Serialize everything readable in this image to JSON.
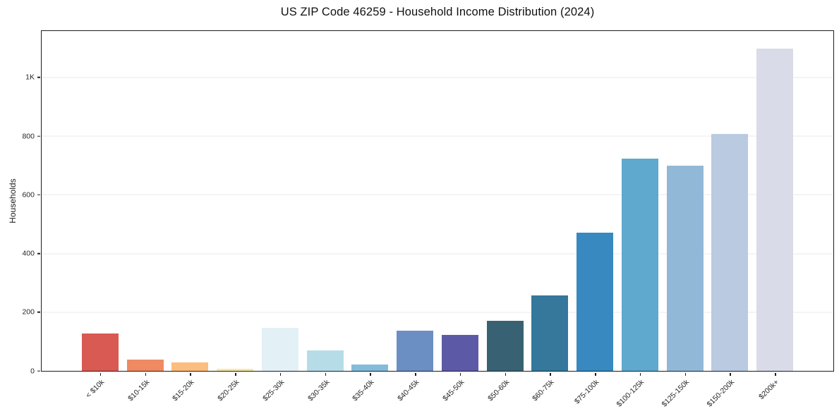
{
  "chart_data": {
    "type": "bar",
    "title": "US ZIP Code 46259 - Household Income Distribution (2024)",
    "xlabel": "",
    "ylabel": "Households",
    "ylim": [
      0,
      1158
    ],
    "grid": "horizontal",
    "legend": "none",
    "background": "#ffffff",
    "frame_color": "#1c1c1c",
    "gridline_color": "#e8e8e8",
    "yticks": [
      {
        "value": 0,
        "label": "0"
      },
      {
        "value": 200,
        "label": "200"
      },
      {
        "value": 400,
        "label": "400"
      },
      {
        "value": 600,
        "label": "600"
      },
      {
        "value": 800,
        "label": "800"
      },
      {
        "value": 1000,
        "label": "1K"
      }
    ],
    "categories": [
      "< $10k",
      "$10-15k",
      "$15-20k",
      "$20-25k",
      "$25-30k",
      "$30-35k",
      "$35-40k",
      "$40-45k",
      "$45-50k",
      "$50-60k",
      "$60-75k",
      "$75-100k",
      "$100-125k",
      "$125-150k",
      "$150-200k",
      "$200k+"
    ],
    "values": [
      127,
      39,
      29,
      7,
      147,
      70,
      21,
      136,
      122,
      170,
      258,
      471,
      722,
      700,
      808,
      1097
    ],
    "bar_colors": [
      "#d95a52",
      "#ef8a62",
      "#fcbd7e",
      "#f9e9a9",
      "#e3f0f6",
      "#b6dce8",
      "#84bbdb",
      "#6b8fc3",
      "#5c5aa6",
      "#386273",
      "#35789c",
      "#3789c0",
      "#5fa8ce",
      "#92b8d8",
      "#b9cae1",
      "#d9dbe8"
    ]
  }
}
